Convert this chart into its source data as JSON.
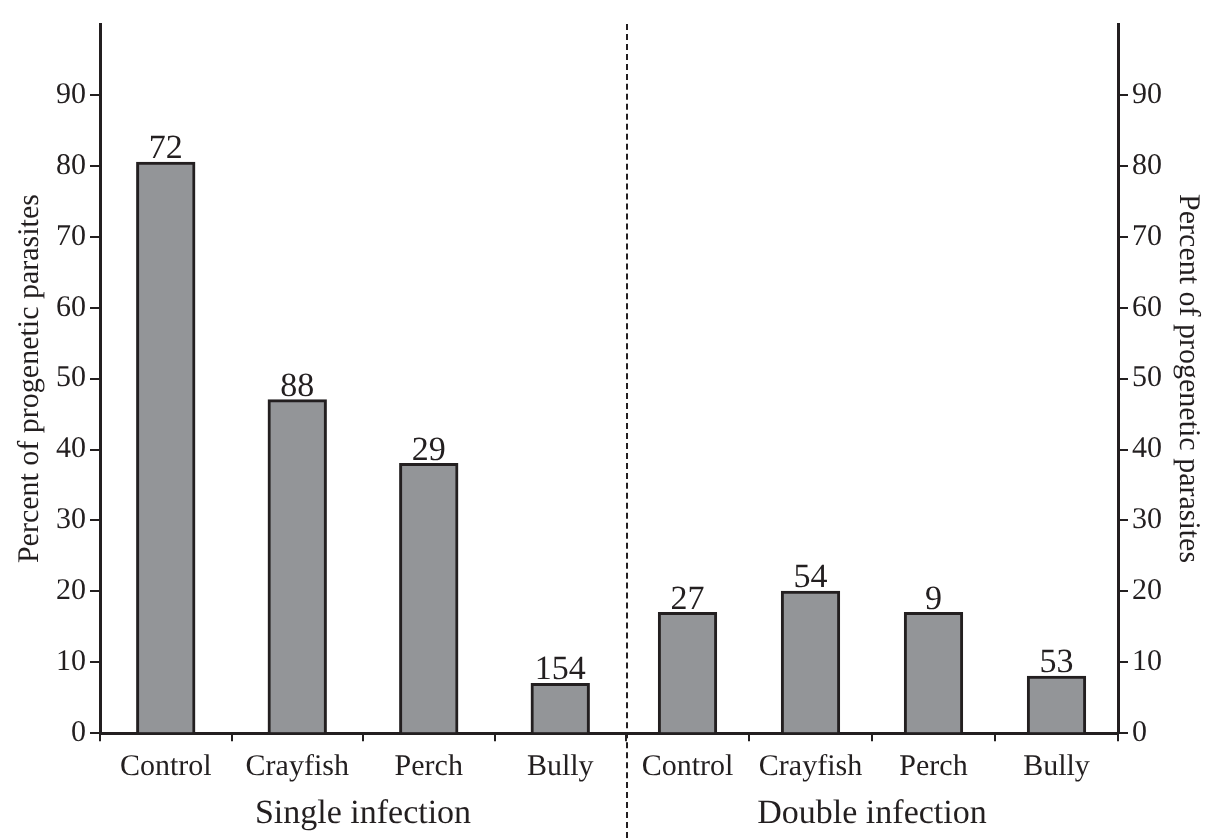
{
  "chart_data": [
    {
      "type": "bar",
      "categories": [
        "Control",
        "Crayfish",
        "Perch",
        "Bully"
      ],
      "values": [
        80.5,
        47,
        38,
        7
      ],
      "color": "#939598",
      "ylim": [
        0,
        100
      ],
      "yticks": [
        0,
        10,
        20,
        30,
        40,
        50,
        60,
        70,
        80,
        90
      ],
      "ylabel": "Percent of progenetic parasites",
      "xlabel": "Single infection",
      "annotations": [
        {
          "text": "72",
          "x": "Control",
          "y": 80.5
        },
        {
          "text": "88",
          "x": "Crayfish",
          "y": 47
        },
        {
          "text": "29",
          "x": "Perch",
          "y": 38
        },
        {
          "text": "154",
          "x": "Bully",
          "y": 7
        }
      ]
    },
    {
      "type": "bar",
      "categories": [
        "Control",
        "Crayfish",
        "Perch",
        "Bully"
      ],
      "values": [
        17,
        20,
        17,
        8
      ],
      "color": "#939598",
      "ylim": [
        0,
        100
      ],
      "yticks": [
        0,
        10,
        20,
        30,
        40,
        50,
        60,
        70,
        80,
        90
      ],
      "ylabel": "Percent of progenetic parasites",
      "xlabel": "Double infection",
      "annotations": [
        {
          "text": "27",
          "x": "Control",
          "y": 17
        },
        {
          "text": "54",
          "x": "Crayfish",
          "y": 20
        },
        {
          "text": "9",
          "x": "Perch",
          "y": 17
        },
        {
          "text": "53",
          "x": "Bully",
          "y": 8
        }
      ]
    }
  ]
}
